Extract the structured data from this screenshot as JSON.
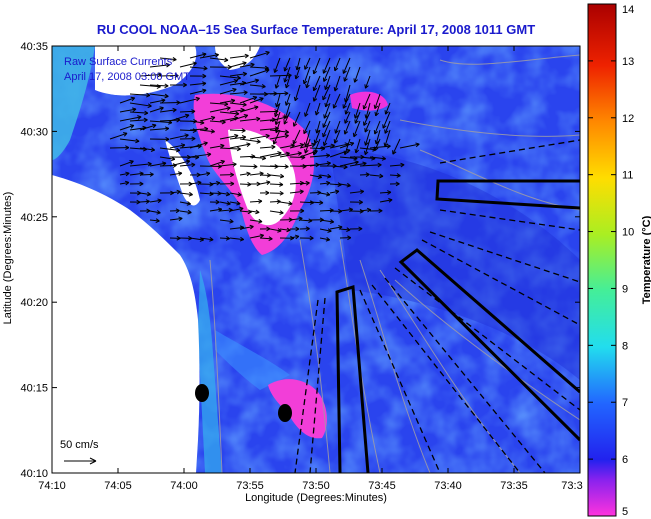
{
  "chart_data": {
    "type": "heatmap",
    "title": "RU COOL  NOAA–15  Sea Surface Temperature:  April 17, 2008 1011 GMT",
    "xlabel": "Longitude (Degrees:Minutes)",
    "ylabel": "Latitude (Degrees:Minutes)",
    "x_ticks": [
      "74:10",
      "74:05",
      "74:00",
      "73:55",
      "73:50",
      "73:45",
      "73:40",
      "73:35",
      "73:3"
    ],
    "y_ticks": [
      "40:10",
      "40:15",
      "40:20",
      "40:25",
      "40:30",
      "40:35"
    ],
    "colorbar": {
      "label": "Temperature (°C)",
      "ticks": [
        "5",
        "6",
        "7",
        "8",
        "9",
        "10",
        "11",
        "12",
        "13",
        "14"
      ],
      "range": [
        5,
        14
      ],
      "colors": [
        "#ff33dd",
        "#7f22ee",
        "#2222ee",
        "#2266ff",
        "#22ddee",
        "#44ee99",
        "#aaee22",
        "#ffdd00",
        "#ff8800",
        "#ee2200",
        "#aa0000"
      ]
    },
    "annotations": {
      "current_label": "Raw Surface Currents",
      "current_time": "April 17, 2008 03:00 GMT",
      "scale_label": "50 cm/s"
    }
  }
}
